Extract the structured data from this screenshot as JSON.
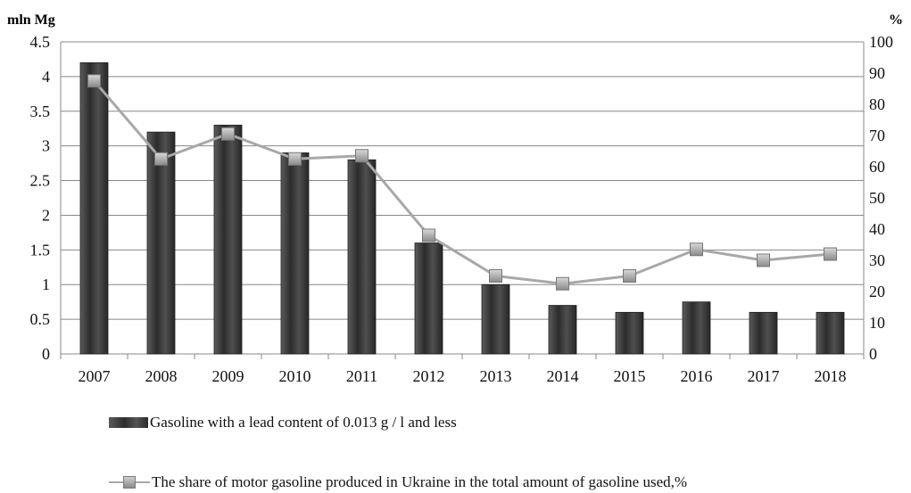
{
  "chart_data": {
    "type": "bar",
    "categories": [
      "2007",
      "2008",
      "2009",
      "2010",
      "2011",
      "2012",
      "2013",
      "2014",
      "2015",
      "2016",
      "2017",
      "2018"
    ],
    "series": [
      {
        "name": "Gasoline with a lead content of 0.013 g / l and less",
        "type": "bar",
        "axis": "left",
        "values": [
          4.2,
          3.2,
          3.3,
          2.9,
          2.8,
          1.6,
          1.0,
          0.7,
          0.6,
          0.75,
          0.6,
          0.6
        ]
      },
      {
        "name": "The share of motor gasoline produced in Ukraine in the total amount of gasoline used,%",
        "type": "line",
        "axis": "right",
        "values": [
          87.5,
          62.5,
          70.5,
          62.5,
          63.5,
          38,
          25,
          22.5,
          25,
          33.5,
          30,
          32
        ]
      }
    ],
    "y_left": {
      "label": "mln Mg",
      "ylim": [
        0,
        4.5
      ],
      "ticks": [
        "0",
        "0.5",
        "1",
        "1.5",
        "2",
        "2.5",
        "3",
        "3.5",
        "4",
        "4.5"
      ]
    },
    "y_right": {
      "label": "%",
      "ylim": [
        0,
        100
      ],
      "ticks": [
        "0",
        "10",
        "20",
        "30",
        "40",
        "50",
        "60",
        "70",
        "80",
        "90",
        "100"
      ]
    },
    "grid": true,
    "legend_placement": "bottom",
    "colors": {
      "bar": "#3a3a3a",
      "line": "#a8a8a8",
      "grid": "#888888"
    }
  }
}
